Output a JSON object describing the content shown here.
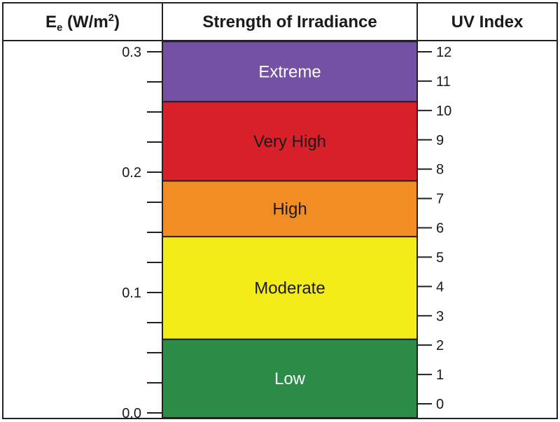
{
  "chart_data": {
    "type": "table",
    "headers": {
      "irradiance": {
        "base": "E",
        "subscript": "e",
        "unit_pre": " (W/m",
        "superscript": "2",
        "unit_post": ")"
      },
      "strength": "Strength of Irradiance",
      "uv": "UV Index"
    },
    "left_axis": {
      "range": [
        0,
        0.3
      ],
      "major_ticks": [
        {
          "value": 0.0,
          "label": "0.0"
        },
        {
          "value": 0.1,
          "label": "0.1"
        },
        {
          "value": 0.2,
          "label": "0.2"
        },
        {
          "value": 0.3,
          "label": "0.3"
        }
      ],
      "minor_step": 0.025
    },
    "right_axis": {
      "range": [
        0,
        12
      ],
      "ticks": [
        "0",
        "1",
        "2",
        "3",
        "4",
        "5",
        "6",
        "7",
        "8",
        "9",
        "10",
        "11",
        "12"
      ]
    },
    "bands": [
      {
        "label": "Low",
        "uv_from": -0.5,
        "uv_to": 2.2,
        "color": "#2a8c46",
        "text_color": "#ffffff"
      },
      {
        "label": "Moderate",
        "uv_from": 2.2,
        "uv_to": 5.7,
        "color": "#f4ec18",
        "text_color": "#1a1a1a"
      },
      {
        "label": "High",
        "uv_from": 5.7,
        "uv_to": 7.6,
        "color": "#f18d22",
        "text_color": "#1a1a1a"
      },
      {
        "label": "Very High",
        "uv_from": 7.6,
        "uv_to": 10.3,
        "color": "#d8202a",
        "text_color": "#1a1a1a"
      },
      {
        "label": "Extreme",
        "uv_from": 10.3,
        "uv_to": 12.35,
        "color": "#7451a2",
        "text_color": "#ffffff"
      }
    ]
  }
}
